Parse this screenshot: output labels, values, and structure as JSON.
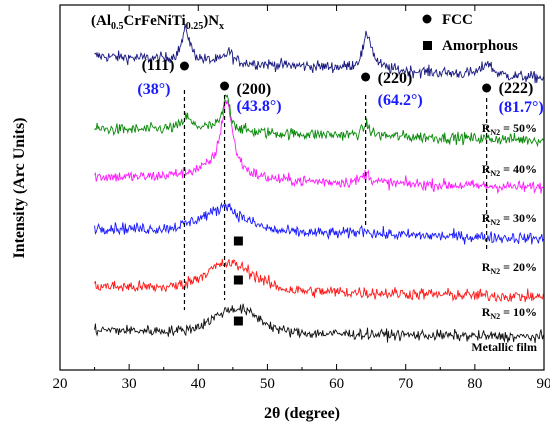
{
  "chart_data": {
    "type": "line",
    "title": "(Al0.5CrFeNiTi0.25)Nx",
    "title_parts": {
      "base": "(Al",
      "sub1": "0.5",
      "mid": "CrFeNiTi",
      "sub2": "0.25",
      "end": ")N",
      "sub3": "x"
    },
    "xlabel": "2θ (degree)",
    "ylabel": "Intensity (Arc Units)",
    "xlim": [
      20,
      90
    ],
    "xticks": [
      "20",
      "30",
      "40",
      "50",
      "60",
      "70",
      "80",
      "90"
    ],
    "grid": false,
    "legend": [
      {
        "marker": "circle",
        "label": "FCC"
      },
      {
        "marker": "square",
        "label": "Amorphous"
      }
    ],
    "x_range_of_data": [
      25,
      90
    ],
    "peaks": [
      {
        "hkl": "(111)",
        "angle_label": "(38°)",
        "x": 38
      },
      {
        "hkl": "(200)",
        "angle_label": "(43.8°)",
        "x": 43.8
      },
      {
        "hkl": "(220)",
        "angle_label": "(64.2°)",
        "x": 64.2
      },
      {
        "hkl": "(222)",
        "angle_label": "(81.7°)",
        "x": 81.7
      }
    ],
    "series": [
      {
        "name": "RN2 = 50%",
        "label_prefix": "R",
        "label_sub": "N2",
        "label_suffix": " = 50%",
        "color": "#1a1a80",
        "base": 0.86,
        "hump": [
          40,
          0.0,
          6
        ],
        "peaks": [
          [
            38.2,
            0.085,
            0.7
          ],
          [
            44.4,
            0.03,
            0.6
          ],
          [
            64.5,
            0.095,
            0.8
          ],
          [
            81.8,
            0.035,
            0.8
          ]
        ],
        "slope": -0.06,
        "noise": 0.015
      },
      {
        "name": "RN2 = 40%",
        "label_prefix": "R",
        "label_sub": "N2",
        "label_suffix": " = 40%",
        "color": "#0a8a0a",
        "base": 0.66,
        "hump": [
          40,
          0.01,
          6
        ],
        "peaks": [
          [
            38.3,
            0.03,
            0.6
          ],
          [
            44.1,
            0.095,
            0.6
          ],
          [
            64.3,
            0.03,
            0.6
          ]
        ],
        "slope": -0.03,
        "noise": 0.015
      },
      {
        "name": "RN2 = 30%",
        "label_prefix": "R",
        "label_sub": "N2",
        "label_suffix": " = 30%",
        "color": "#ff1aff",
        "base": 0.53,
        "hump": [
          42,
          0.02,
          6
        ],
        "peaks": [
          [
            44.1,
            0.2,
            1.0
          ],
          [
            64.3,
            0.025,
            0.8
          ]
        ],
        "slope": -0.03,
        "noise": 0.015
      },
      {
        "name": "RN2 = 20%",
        "label_prefix": "R",
        "label_sub": "N2",
        "label_suffix": " = 20%",
        "color": "#1a1aff",
        "base": 0.39,
        "hump": [
          43.5,
          0.05,
          5
        ],
        "peaks": [
          [
            44.0,
            0.025,
            0.8
          ],
          [
            64.0,
            0.012,
            1.0
          ]
        ],
        "slope": -0.03,
        "noise": 0.015
      },
      {
        "name": "RN2 = 10%",
        "label_prefix": "R",
        "label_sub": "N2",
        "label_suffix": " = 10%",
        "color": "#ff1a1a",
        "base": 0.23,
        "hump": [
          44.5,
          0.07,
          5
        ],
        "peaks": [],
        "slope": -0.03,
        "noise": 0.016
      },
      {
        "name": "Metallic film",
        "label_prefix": "Metallic film",
        "label_sub": "",
        "label_suffix": "",
        "color": "#111111",
        "base": 0.11,
        "hump": [
          45.5,
          0.065,
          4.5
        ],
        "peaks": [],
        "slope": -0.02,
        "noise": 0.014
      }
    ],
    "amorphous_markers_x": [
      45.8,
      45.8,
      45.8
    ]
  }
}
